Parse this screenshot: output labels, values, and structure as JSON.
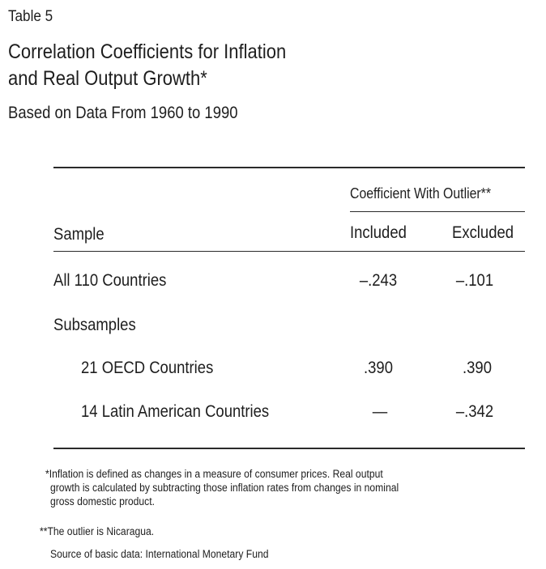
{
  "table_label": "Table 5",
  "title_line1": "Correlation Coefficients for Inflation",
  "title_line2": "and Real Output Growth*",
  "subtitle": "Based on Data From 1960 to 1990",
  "table": {
    "group_header": "Coefficient With Outlier**",
    "col_sample": "Sample",
    "col_included": "Included",
    "col_excluded": "Excluded",
    "rows": [
      {
        "label": "All 110 Countries",
        "included": "–.243",
        "excluded": "–.101"
      },
      {
        "label": "Subsamples",
        "included": "",
        "excluded": ""
      },
      {
        "label": "21 OECD Countries",
        "included": ".390",
        "excluded": ".390"
      },
      {
        "label": "14 Latin American Countries",
        "included": "—",
        "excluded": "–.342"
      }
    ]
  },
  "footnotes": {
    "note1_line1": "*Inflation is defined as changes in a measure of consumer prices. Real output",
    "note1_line2": "growth is calculated by subtracting those inflation rates from changes in nominal",
    "note1_line3": "gross domestic product.",
    "note2": "**The outlier is Nicaragua.",
    "source": "Source of basic data: International Monetary Fund"
  }
}
